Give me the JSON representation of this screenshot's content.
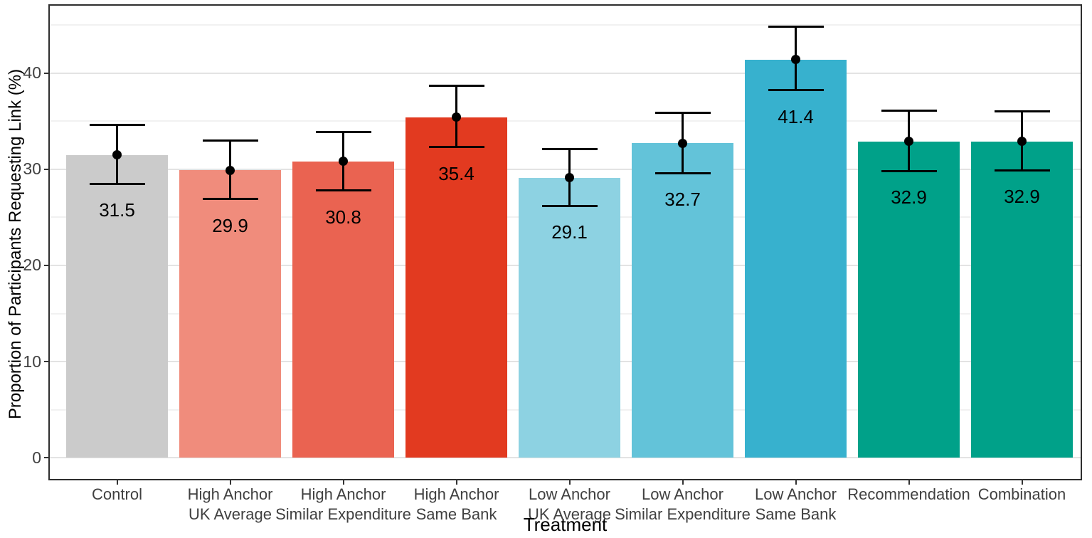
{
  "chart_data": {
    "type": "bar",
    "title": "",
    "xlabel": "Treatment",
    "ylabel": "Proportion of Participants Requesting Link (%)",
    "categories": [
      "Control",
      "High Anchor\nUK Average",
      "High Anchor\nSimilar Expenditure",
      "High Anchor\nSame Bank",
      "Low Anchor\nUK Average",
      "Low Anchor\nSimilar Expenditure",
      "Low Anchor\nSame Bank",
      "Recommendation",
      "Combination"
    ],
    "values": [
      31.5,
      29.9,
      30.8,
      35.4,
      29.1,
      32.7,
      41.4,
      32.9,
      32.9
    ],
    "value_labels": [
      "31.5",
      "29.9",
      "30.8",
      "35.4",
      "29.1",
      "32.7",
      "41.4",
      "32.9",
      "32.9"
    ],
    "error_bars": [
      {
        "low": 28.5,
        "high": 34.6
      },
      {
        "low": 26.9,
        "high": 33.0
      },
      {
        "low": 27.8,
        "high": 33.9
      },
      {
        "low": 32.3,
        "high": 38.7
      },
      {
        "low": 26.2,
        "high": 32.1
      },
      {
        "low": 29.6,
        "high": 35.9
      },
      {
        "low": 38.2,
        "high": 44.8
      },
      {
        "low": 29.8,
        "high": 36.1
      },
      {
        "low": 29.9,
        "high": 36.0
      }
    ],
    "bar_colors": [
      "#CBCBCB",
      "#F08C7C",
      "#EA6351",
      "#E23A20",
      "#8DD2E2",
      "#63C3D9",
      "#37B1CE",
      "#00A189",
      "#00A189"
    ],
    "error_bar_color": "#000000",
    "point_color": "#000000",
    "ylim": [
      -2.2,
      47.0
    ],
    "yticks": [
      0,
      10,
      20,
      30,
      40
    ],
    "yticks_minor": [
      5,
      15,
      25,
      35,
      45
    ],
    "legend": "none",
    "grid": "horizontal major and minor gridlines"
  }
}
